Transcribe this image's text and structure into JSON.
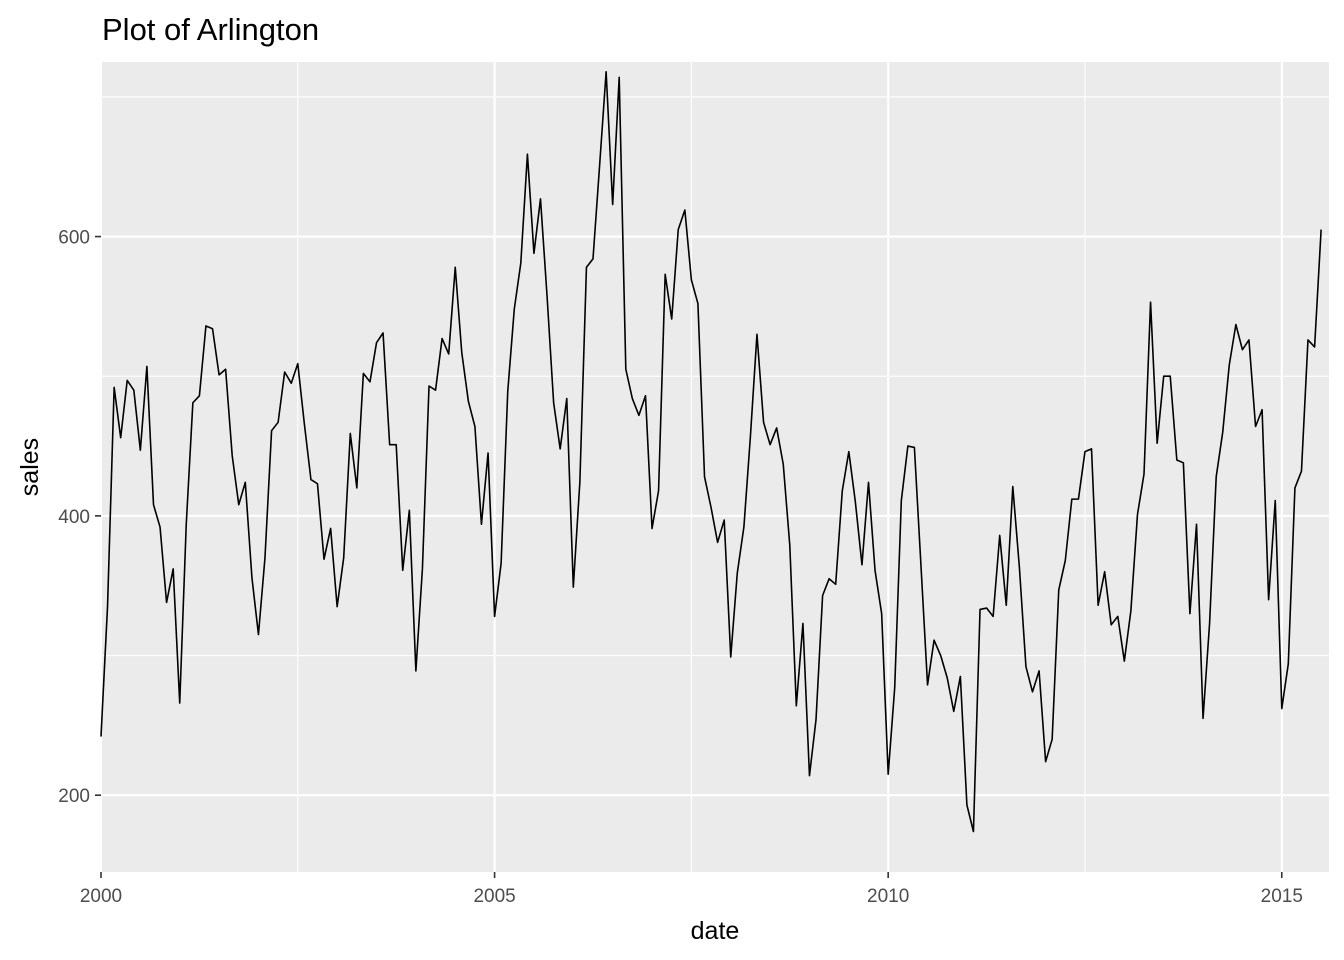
{
  "chart_data": {
    "type": "line",
    "title": "Plot of Arlington",
    "xlabel": "date",
    "ylabel": "sales",
    "xlim": [
      2000,
      2015.6
    ],
    "ylim": [
      145,
      725
    ],
    "x_ticks": [
      2000,
      2005,
      2010,
      2015
    ],
    "x_tick_labels": [
      "2000",
      "2005",
      "2010",
      "2015"
    ],
    "y_ticks": [
      200,
      400,
      600
    ],
    "y_tick_labels": [
      "200",
      "400",
      "600"
    ],
    "grid": true,
    "panel_background": "#ebebeb",
    "grid_color": "#ffffff",
    "line_color": "#000000",
    "series": [
      {
        "x": [
          2000.0,
          2000.083,
          2000.167,
          2000.25,
          2000.333,
          2000.417,
          2000.5,
          2000.583,
          2000.667,
          2000.75,
          2000.833,
          2000.917,
          2001.0,
          2001.083,
          2001.167,
          2001.25,
          2001.333,
          2001.417,
          2001.5,
          2001.583,
          2001.667,
          2001.75,
          2001.833,
          2001.917,
          2002.0,
          2002.083,
          2002.167,
          2002.25,
          2002.333,
          2002.417,
          2002.5,
          2002.583,
          2002.667,
          2002.75,
          2002.833,
          2002.917,
          2003.0,
          2003.083,
          2003.167,
          2003.25,
          2003.333,
          2003.417,
          2003.5,
          2003.583,
          2003.667,
          2003.75,
          2003.833,
          2003.917,
          2004.0,
          2004.083,
          2004.167,
          2004.25,
          2004.333,
          2004.417,
          2004.5,
          2004.583,
          2004.667,
          2004.75,
          2004.833,
          2004.917,
          2005.0,
          2005.083,
          2005.167,
          2005.25,
          2005.333,
          2005.417,
          2005.5,
          2005.583,
          2005.667,
          2005.75,
          2005.833,
          2005.917,
          2006.0,
          2006.083,
          2006.167,
          2006.25,
          2006.333,
          2006.417,
          2006.5,
          2006.583,
          2006.667,
          2006.75,
          2006.833,
          2006.917,
          2007.0,
          2007.083,
          2007.167,
          2007.25,
          2007.333,
          2007.417,
          2007.5,
          2007.583,
          2007.667,
          2007.75,
          2007.833,
          2007.917,
          2008.0,
          2008.083,
          2008.167,
          2008.25,
          2008.333,
          2008.417,
          2008.5,
          2008.583,
          2008.667,
          2008.75,
          2008.833,
          2008.917,
          2009.0,
          2009.083,
          2009.167,
          2009.25,
          2009.333,
          2009.417,
          2009.5,
          2009.583,
          2009.667,
          2009.75,
          2009.833,
          2009.917,
          2010.0,
          2010.083,
          2010.167,
          2010.25,
          2010.333,
          2010.417,
          2010.5,
          2010.583,
          2010.667,
          2010.75,
          2010.833,
          2010.917,
          2011.0,
          2011.083,
          2011.167,
          2011.25,
          2011.333,
          2011.417,
          2011.5,
          2011.583,
          2011.667,
          2011.75,
          2011.833,
          2011.917,
          2012.0,
          2012.083,
          2012.167,
          2012.25,
          2012.333,
          2012.417,
          2012.5,
          2012.583,
          2012.667,
          2012.75,
          2012.833,
          2012.917,
          2013.0,
          2013.083,
          2013.167,
          2013.25,
          2013.333,
          2013.417,
          2013.5,
          2013.583,
          2013.667,
          2013.75,
          2013.833,
          2013.917,
          2014.0,
          2014.083,
          2014.167,
          2014.25,
          2014.333,
          2014.417,
          2014.5,
          2014.583,
          2014.667,
          2014.75,
          2014.833,
          2014.917,
          2015.0,
          2015.083,
          2015.167,
          2015.25,
          2015.333,
          2015.417,
          2015.5
        ],
        "values": [
          242,
          335,
          492,
          456,
          497,
          490,
          447,
          507,
          408,
          392,
          338,
          362,
          266,
          394,
          481,
          486,
          536,
          534,
          501,
          505,
          443,
          408,
          424,
          356,
          315,
          370,
          461,
          467,
          503,
          495,
          509,
          466,
          426,
          423,
          369,
          391,
          335,
          370,
          459,
          420,
          502,
          496,
          524,
          531,
          451,
          451,
          361,
          404,
          289,
          362,
          493,
          490,
          527,
          516,
          578,
          517,
          482,
          464,
          394,
          445,
          328,
          366,
          489,
          548,
          581,
          659,
          588,
          627,
          557,
          481,
          448,
          484,
          349,
          424,
          578,
          584,
          650,
          718,
          623,
          714,
          505,
          484,
          472,
          486,
          391,
          418,
          573,
          541,
          605,
          619,
          569,
          552,
          428,
          406,
          381,
          397,
          299,
          359,
          392,
          457,
          530,
          467,
          451,
          463,
          437,
          379,
          264,
          323,
          214,
          254,
          343,
          355,
          351,
          418,
          446,
          410,
          365,
          424,
          361,
          330,
          215,
          277,
          411,
          450,
          449,
          364,
          279,
          311,
          300,
          284,
          260,
          285,
          193,
          174,
          333,
          334,
          328,
          386,
          336,
          421,
          363,
          292,
          274,
          289,
          224,
          240,
          347,
          368,
          412,
          412,
          446,
          448,
          336,
          360,
          322,
          328,
          296,
          332,
          401,
          430,
          553,
          452,
          500,
          500,
          440,
          438,
          330,
          394,
          255,
          323,
          428,
          460,
          508,
          537,
          519,
          526,
          464,
          476,
          340,
          411,
          262,
          294,
          420,
          432,
          526,
          521,
          605
        ]
      }
    ]
  }
}
